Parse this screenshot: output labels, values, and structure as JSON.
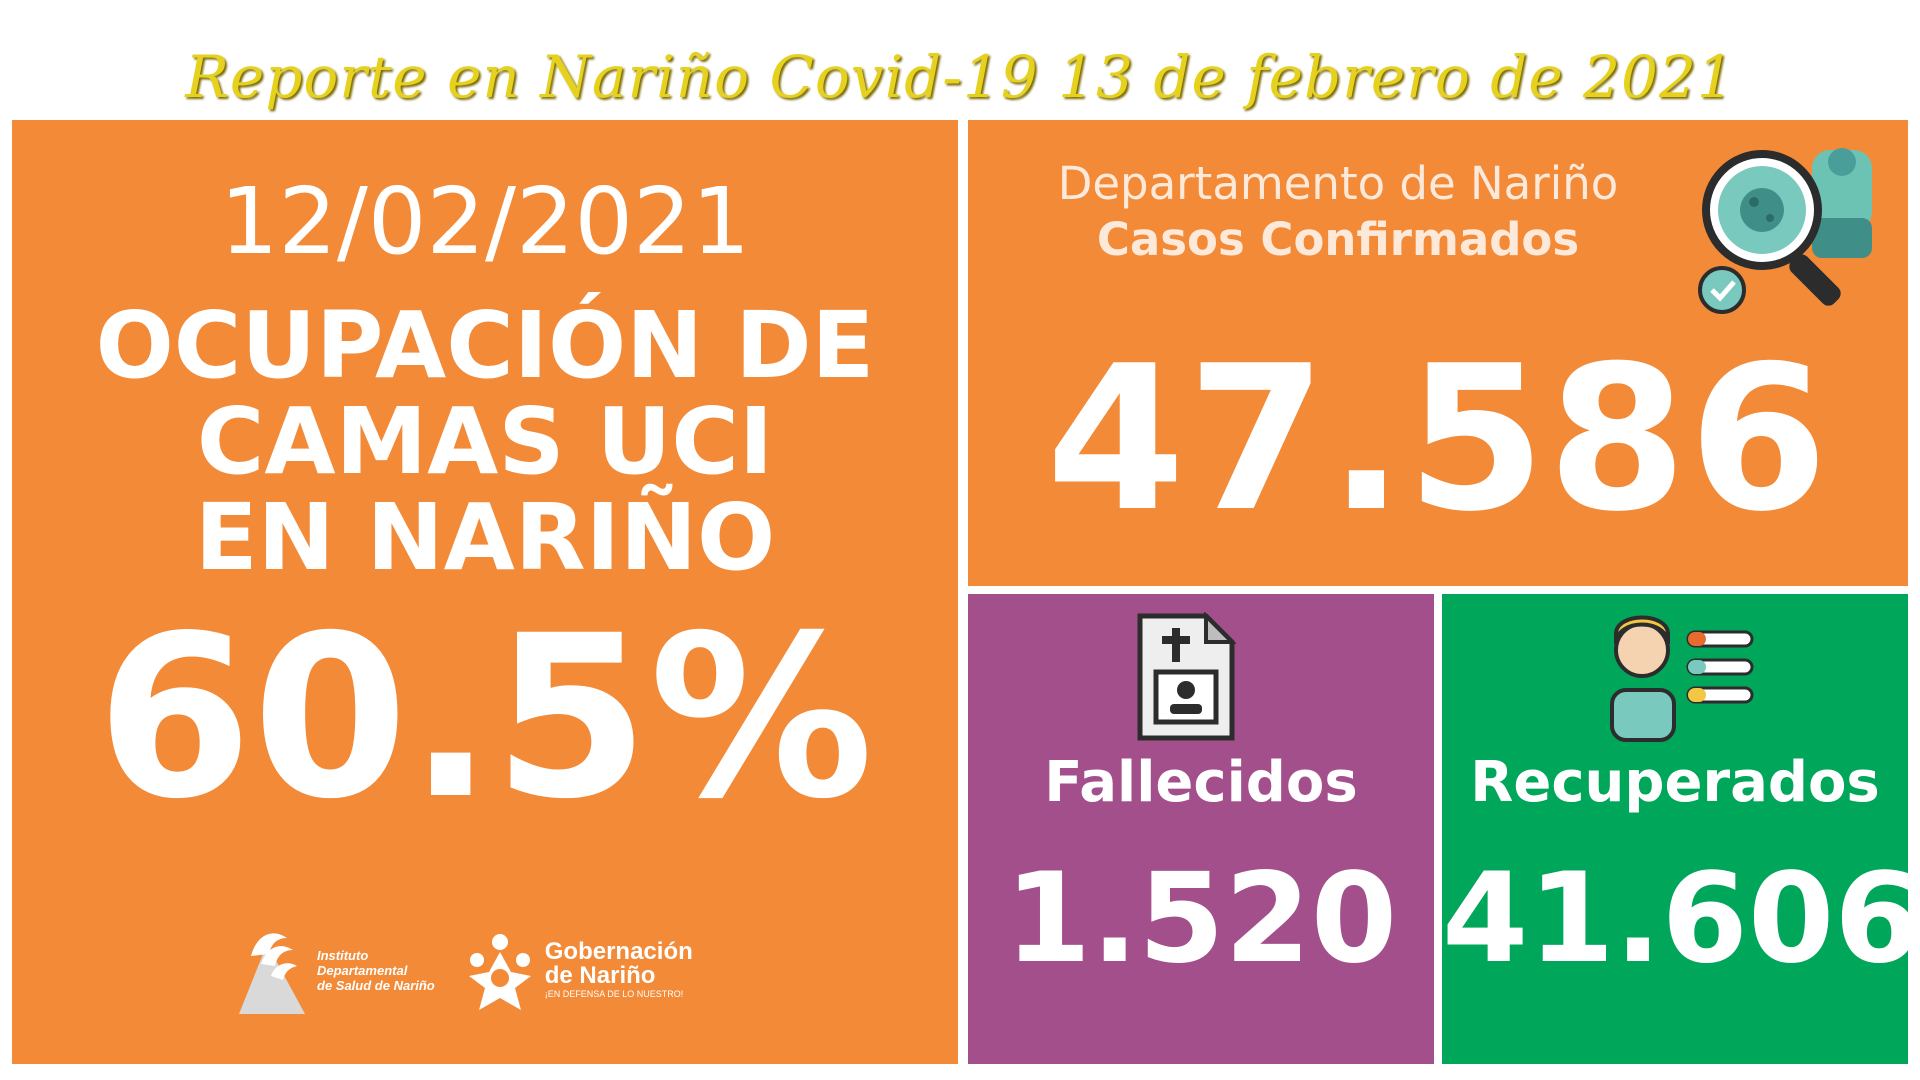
{
  "header": {
    "title": "Reporte en Nariño Covid-19 13 de febrero de 2021"
  },
  "icu": {
    "date": "12/02/2021",
    "heading_lines": [
      "OCUPACIÓN DE",
      "CAMAS UCI",
      "EN NARIÑO"
    ],
    "occupancy": "60.5%"
  },
  "logos": {
    "ids_lines": [
      "Instituto",
      "Departamental",
      "de Salud de Nariño"
    ],
    "gob_title_lines": [
      "Gobernación",
      "de Nariño"
    ],
    "gob_slogan": "¡EN DEFENSA DE LO NUESTRO!"
  },
  "cases": {
    "label_line1": "Departamento de Nariño",
    "label_line2": "Casos Confirmados",
    "value": "47.586",
    "icon": "virus-magnifier-icon"
  },
  "deaths": {
    "label": "Fallecidos",
    "value": "1.520",
    "icon": "death-certificate-icon"
  },
  "recovered": {
    "label": "Recuperados",
    "value": "41.606",
    "icon": "recovered-patient-icon"
  },
  "colors": {
    "orange": "#f28a38",
    "purple": "#a24f8b",
    "green": "#00a65a",
    "title": "#e6d11e"
  }
}
